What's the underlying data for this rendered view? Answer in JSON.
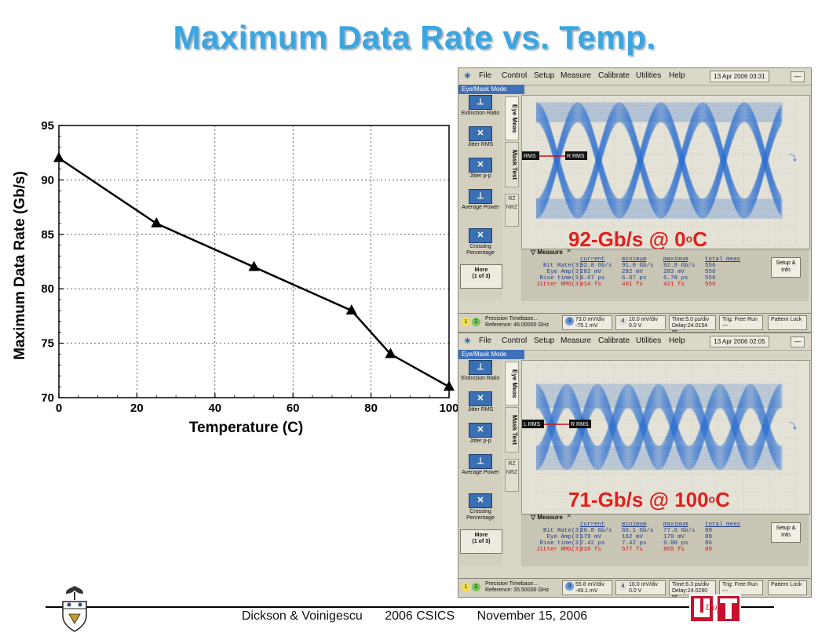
{
  "slide": {
    "title": "Maximum Data Rate vs. Temp.",
    "footer": {
      "authors": "Dickson & Voinigescu",
      "conference": "2006 CSICS",
      "date": "November 15, 2006"
    },
    "logo_uoft": "UofT"
  },
  "chart_data": {
    "type": "line",
    "xlabel": "Temperature (C)",
    "ylabel": "Maximum Data Rate (Gb/s)",
    "xlim": [
      0,
      100
    ],
    "ylim": [
      70,
      95
    ],
    "xticks": [
      "0",
      "20",
      "40",
      "60",
      "80",
      "100"
    ],
    "yticks": [
      "70",
      "75",
      "80",
      "85",
      "90",
      "95"
    ],
    "x": [
      0,
      25,
      50,
      75,
      85,
      100
    ],
    "series": [
      {
        "values": [
          92,
          86,
          82,
          78,
          74,
          71
        ],
        "marker": "triangle",
        "color": "#000000"
      }
    ],
    "grid": true
  },
  "scopes": [
    {
      "label_rate": "92-Gb/s @ 0",
      "label_deg": "o",
      "label_unit": "C",
      "menu": {
        "file": "File",
        "control": "Control",
        "setup": "Setup",
        "measure": "Measure",
        "calibrate": "Calibrate",
        "utilities": "Utilities",
        "help": "Help",
        "date": "13 Apr 2006",
        "time": "03:31",
        "min_btn": "—"
      },
      "mode": "Eye/Mask Mode",
      "side": [
        "Extinction Ratio",
        "Jitter RMS",
        "Jitter p-p",
        "Average Power",
        "Crossing Percentage"
      ],
      "more": "More",
      "more_sub": "(1 of 3)",
      "tabs": {
        "eye": "Eye Meas",
        "mask": "Mask Test"
      },
      "nrz": [
        "RZ",
        "NRZ"
      ],
      "markers": {
        "left": "RMS",
        "right": "R RMS"
      },
      "meas_title": "Measure",
      "meas_close": "✕",
      "meas_header": [
        "current",
        "minimum",
        "maximum",
        "total meas"
      ],
      "meas_rows": [
        [
          "Bit Rate",
          "3",
          "92.8 Gb/s",
          "91.8 Gb/s",
          "92.8 Gb/s",
          "556"
        ],
        [
          "Eye Amp",
          "3",
          "282 mV",
          "282 mV",
          "283 mV",
          "556"
        ],
        [
          "Rise time",
          "3",
          "6.67 ps",
          "6.67 ps",
          "6.78 ps",
          "556"
        ],
        [
          "Jitter RMS",
          "3",
          "414 fs",
          "401 fs",
          "421 fs",
          "556"
        ]
      ],
      "setup": "Setup & Info",
      "status": {
        "timebase": "Precision Timebase...",
        "reference": "Reference: 46.00000 GHz",
        "ch3_scale": "73.0 mV/div",
        "ch3_offset": "-75.1 mV",
        "ch4_scale": "10.0 mV/div",
        "ch4_offset": "0.0 V",
        "time": "Time:5.0 ps/div",
        "delay": "Delay:24.0154 ns",
        "trig": "Trig: Free Run",
        "trig2": "---",
        "pattern": "Pattern Lock"
      }
    },
    {
      "label_rate": "71-Gb/s @ 100",
      "label_deg": "o",
      "label_unit": "C",
      "menu": {
        "file": "File",
        "control": "Control",
        "setup": "Setup",
        "measure": "Measure",
        "calibrate": "Calibrate",
        "utilities": "Utilities",
        "help": "Help",
        "date": "13 Apr 2006",
        "time": "02:05",
        "min_btn": "—"
      },
      "mode": "Eye/Mask Mode",
      "side": [
        "Extinction Ratio",
        "Jitter RMS",
        "Jitter p-p",
        "Average Power",
        "Crossing Percentage"
      ],
      "more": "More",
      "more_sub": "(1 of 3)",
      "tabs": {
        "eye": "Eye Meas",
        "mask": "Mask Test"
      },
      "nrz": [
        "RZ",
        "NRZ"
      ],
      "markers": {
        "left": "L RMS",
        "right": "R RMS"
      },
      "meas_title": "Measure",
      "meas_close": "✕",
      "meas_header": [
        "current",
        "minimum",
        "maximum",
        "total meas"
      ],
      "meas_rows": [
        [
          "Bit Rate",
          "3",
          "66.8 Gb/s",
          "66.1 Gb/s",
          "77.6 Gb/s",
          "89"
        ],
        [
          "Eye Amp",
          "3",
          "179 mV",
          "162 mV",
          "179 mV",
          "89"
        ],
        [
          "Rise time",
          "3",
          "7.42 ps",
          "7.42 ps",
          "9.80 ps",
          "86"
        ],
        [
          "Jitter RMS",
          "3",
          "610 fs",
          "577 fs",
          "865 fs",
          "89"
        ]
      ],
      "setup": "Setup & Info",
      "status": {
        "timebase": "Precision Timebase...",
        "reference": "Reference: 35.50000 GHz",
        "ch3_scale": "55.8 mV/div",
        "ch3_offset": "-49.1 mV",
        "ch4_scale": "10.0 mV/div",
        "ch4_offset": "0.0 V",
        "time": "Time:6.3 ps/div",
        "delay": "Delay:24.0290 ns",
        "trig": "Trig: Free Run",
        "trig2": "---",
        "pattern": "Pattern Lock"
      }
    }
  ]
}
